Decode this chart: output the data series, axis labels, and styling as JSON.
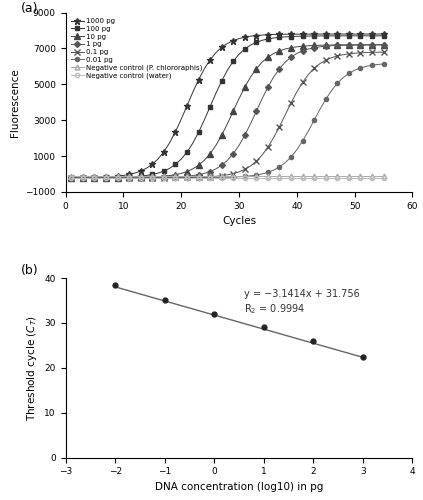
{
  "panel_a": {
    "title": "(a)",
    "xlabel": "Cycles",
    "ylabel": "Fluorescence",
    "xlim": [
      0,
      60
    ],
    "ylim": [
      -1000,
      9000
    ],
    "yticks": [
      -1000,
      1000,
      3000,
      5000,
      7000,
      9000
    ],
    "xticks": [
      0,
      10,
      20,
      30,
      40,
      50,
      60
    ],
    "series": [
      {
        "label": "1000 pg",
        "marker": "*",
        "shift": 21,
        "plateau": 7800,
        "k": 0.38,
        "ms": 4.5,
        "color": "#333333"
      },
      {
        "label": "100 pg",
        "marker": "s",
        "shift": 25,
        "plateau": 7700,
        "k": 0.38,
        "ms": 3.5,
        "color": "#333333"
      },
      {
        "label": "10 pg",
        "marker": "^",
        "shift": 29,
        "plateau": 7200,
        "k": 0.38,
        "ms": 4.0,
        "color": "#444444"
      },
      {
        "label": "1 pg",
        "marker": "D",
        "shift": 33,
        "plateau": 7200,
        "k": 0.38,
        "ms": 3.0,
        "color": "#555555"
      },
      {
        "label": "0.1 pg",
        "marker": "x",
        "shift": 38,
        "plateau": 6800,
        "k": 0.38,
        "ms": 4.0,
        "color": "#555555"
      },
      {
        "label": "0.01 pg",
        "marker": "o",
        "shift": 43,
        "plateau": 6200,
        "k": 0.38,
        "ms": 3.0,
        "color": "#666666"
      }
    ],
    "neg_controls": [
      {
        "label": "Negative control (P. chlororaphis)",
        "marker": "^",
        "y_flat": -100,
        "color": "#aaaaaa",
        "ms": 3.5
      },
      {
        "label": "Negative control (water)",
        "marker": "o",
        "y_flat": -200,
        "color": "#bbbbbb",
        "ms": 3.0
      }
    ],
    "baseline": -200,
    "n_cycles": 55
  },
  "panel_b": {
    "title": "(b)",
    "xlabel": "DNA concentration (log10) in pg",
    "ylabel": "Threshold cycle ($C_T$)",
    "xlim": [
      -3,
      4
    ],
    "ylim": [
      0,
      40
    ],
    "xticks": [
      -3,
      -2,
      -1,
      0,
      1,
      2,
      3,
      4
    ],
    "yticks": [
      0,
      10,
      20,
      30,
      40
    ],
    "points_x": [
      -2,
      -1,
      0,
      1,
      2,
      3
    ],
    "points_y": [
      38.4,
      35.0,
      32.0,
      29.0,
      25.9,
      22.3
    ],
    "slope": -3.1414,
    "intercept": 31.756,
    "r2": 0.9994,
    "eq_text": "y = −3.1414x + 31.756",
    "r2_text": "R$_2$ = 0.9994",
    "eq_x": 0.6,
    "eq_y": 37.5,
    "line_x_start": -2,
    "line_x_end": 3,
    "line_color": "#666666",
    "dot_color": "#222222"
  }
}
